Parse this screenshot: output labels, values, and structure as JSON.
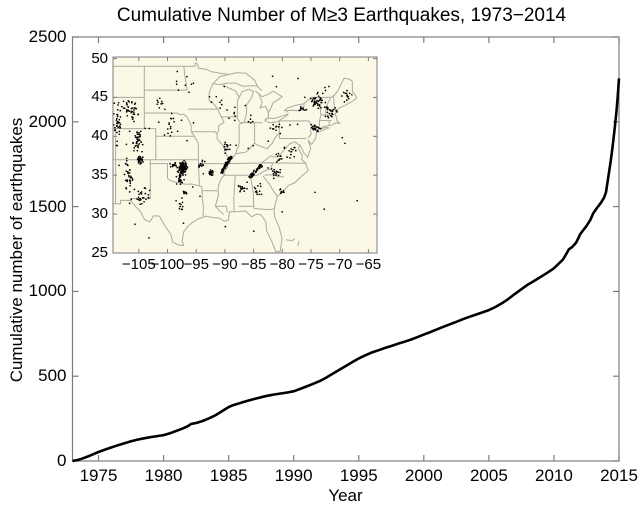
{
  "figure": {
    "title": "Cumulative Number of M≥3 Earthquakes, 1973−2014",
    "background": "#ffffff",
    "frame_color": "#7d7d7d",
    "text_color": "#000000"
  },
  "main_axes": {
    "xlabel": "Year",
    "ylabel": "Cumulative number of earthquakes",
    "xlim": [
      1973,
      2015
    ],
    "ylim": [
      0,
      2500
    ],
    "x_tick_values": [
      1975,
      1980,
      1985,
      1990,
      1995,
      2000,
      2005,
      2010,
      2015
    ],
    "x_tick_labels": [
      "1975",
      "1980",
      "1985",
      "1990",
      "1995",
      "2000",
      "2005",
      "2010",
      "2015"
    ],
    "y_tick_values": [
      0,
      500,
      1000,
      1500,
      2000,
      2500
    ],
    "y_tick_labels": [
      "0",
      "500",
      "1000",
      "1500",
      "2000",
      "2500"
    ]
  },
  "inset_axes": {
    "xlim": [
      -109.5,
      -63.5
    ],
    "ylim": [
      25,
      50.2
    ],
    "x_tick_values": [
      -105,
      -100,
      -95,
      -90,
      -85,
      -80,
      -75,
      -70,
      -65
    ],
    "x_tick_labels": [
      "−105",
      "−100",
      "−95",
      "−90",
      "−85",
      "−80",
      "−75",
      "−70",
      "−65"
    ],
    "y_tick_values": [
      25,
      30,
      35,
      40,
      45,
      50
    ],
    "y_tick_labels": [
      "25",
      "30",
      "35",
      "40",
      "45",
      "50"
    ],
    "background": "#fbf8e5",
    "boundary_color": "#a8aba4",
    "dot_color": "#000000"
  },
  "chart_data": [
    {
      "type": "line",
      "title": "Cumulative Number of M≥3 Earthquakes, 1973−2014",
      "xlabel": "Year",
      "ylabel": "Cumulative number of earthquakes",
      "xlim": [
        1973,
        2015
      ],
      "ylim": [
        0,
        2500
      ],
      "grid": false,
      "line_color": "#000000",
      "line_width": 2.6,
      "series": [
        {
          "name": "cumulative-m3-earthquakes",
          "points": [
            [
              1973.0,
              0
            ],
            [
              1973.4,
              6
            ],
            [
              1973.8,
              16
            ],
            [
              1974.2,
              27
            ],
            [
              1974.6,
              40
            ],
            [
              1975.0,
              53
            ],
            [
              1975.5,
              67
            ],
            [
              1976.0,
              80
            ],
            [
              1976.5,
              93
            ],
            [
              1977.0,
              105
            ],
            [
              1977.5,
              116
            ],
            [
              1978.0,
              126
            ],
            [
              1978.5,
              134
            ],
            [
              1979.0,
              141
            ],
            [
              1979.5,
              147
            ],
            [
              1980.0,
              153
            ],
            [
              1980.5,
              164
            ],
            [
              1981.0,
              178
            ],
            [
              1981.5,
              193
            ],
            [
              1981.8,
              203
            ],
            [
              1982.0,
              212
            ],
            [
              1982.1,
              218
            ],
            [
              1982.5,
              224
            ],
            [
              1983.0,
              236
            ],
            [
              1983.5,
              252
            ],
            [
              1984.0,
              270
            ],
            [
              1984.5,
              294
            ],
            [
              1985.0,
              318
            ],
            [
              1985.3,
              328
            ],
            [
              1985.7,
              337
            ],
            [
              1986.0,
              345
            ],
            [
              1986.5,
              356
            ],
            [
              1987.0,
              366
            ],
            [
              1987.5,
              376
            ],
            [
              1988.0,
              385
            ],
            [
              1988.5,
              392
            ],
            [
              1989.0,
              398
            ],
            [
              1989.5,
              404
            ],
            [
              1990.0,
              411
            ],
            [
              1990.5,
              425
            ],
            [
              1991.0,
              440
            ],
            [
              1991.5,
              455
            ],
            [
              1992.0,
              471
            ],
            [
              1992.5,
              492
            ],
            [
              1993.0,
              514
            ],
            [
              1993.5,
              537
            ],
            [
              1994.0,
              560
            ],
            [
              1994.5,
              583
            ],
            [
              1995.0,
              605
            ],
            [
              1995.5,
              623
            ],
            [
              1996.0,
              640
            ],
            [
              1996.5,
              653
            ],
            [
              1997.0,
              666
            ],
            [
              1997.5,
              678
            ],
            [
              1998.0,
              691
            ],
            [
              1998.5,
              703
            ],
            [
              1999.0,
              716
            ],
            [
              1999.5,
              730
            ],
            [
              2000.0,
              745
            ],
            [
              2000.5,
              760
            ],
            [
              2001.0,
              776
            ],
            [
              2001.5,
              791
            ],
            [
              2002.0,
              806
            ],
            [
              2002.5,
              821
            ],
            [
              2003.0,
              836
            ],
            [
              2003.5,
              850
            ],
            [
              2004.0,
              863
            ],
            [
              2004.5,
              876
            ],
            [
              2005.0,
              890
            ],
            [
              2005.5,
              908
            ],
            [
              2006.0,
              930
            ],
            [
              2006.5,
              956
            ],
            [
              2007.0,
              985
            ],
            [
              2007.5,
              1013
            ],
            [
              2008.0,
              1040
            ],
            [
              2008.5,
              1063
            ],
            [
              2009.0,
              1086
            ],
            [
              2009.5,
              1110
            ],
            [
              2010.0,
              1136
            ],
            [
              2010.3,
              1158
            ],
            [
              2010.7,
              1188
            ],
            [
              2011.0,
              1228
            ],
            [
              2011.15,
              1248
            ],
            [
              2011.4,
              1262
            ],
            [
              2011.7,
              1288
            ],
            [
              2011.9,
              1318
            ],
            [
              2012.0,
              1336
            ],
            [
              2012.2,
              1356
            ],
            [
              2012.5,
              1386
            ],
            [
              2012.8,
              1422
            ],
            [
              2013.0,
              1458
            ],
            [
              2013.3,
              1492
            ],
            [
              2013.6,
              1522
            ],
            [
              2013.85,
              1552
            ],
            [
              2014.0,
              1585
            ],
            [
              2014.1,
              1635
            ],
            [
              2014.2,
              1686
            ],
            [
              2014.35,
              1760
            ],
            [
              2014.5,
              1848
            ],
            [
              2014.65,
              1946
            ],
            [
              2014.8,
              2056
            ],
            [
              2014.9,
              2148
            ],
            [
              2015.0,
              2256
            ]
          ]
        }
      ]
    },
    {
      "type": "scatter",
      "name": "inset-epicenter-map",
      "xlim": [
        -109.5,
        -63.5
      ],
      "ylim": [
        25,
        50.2
      ],
      "marker_color": "#000000",
      "marker_radius": 0.85,
      "seed": 42,
      "clusters": [
        {
          "name": "wyoming-left-edge",
          "lon": -108.6,
          "lat": 41.5,
          "sx": 0.9,
          "sy": 2.6,
          "n": 38
        },
        {
          "name": "central-wyoming",
          "lon": -106.4,
          "lat": 43.4,
          "sx": 1.4,
          "sy": 1.3,
          "n": 42
        },
        {
          "name": "colorado-front-range",
          "lon": -105.2,
          "lat": 39.3,
          "sx": 0.9,
          "sy": 1.6,
          "n": 40
        },
        {
          "name": "rio-grande-rift-nm",
          "lon": -106.7,
          "lat": 34.6,
          "sx": 0.8,
          "sy": 2.0,
          "n": 34
        },
        {
          "name": "raton-basin",
          "lon": -104.8,
          "lat": 36.9,
          "sx": 0.45,
          "sy": 0.5,
          "n": 30
        },
        {
          "name": "se-new-mexico-west-texas",
          "lon": -104.3,
          "lat": 32.3,
          "sx": 1.3,
          "sy": 1.0,
          "n": 24
        },
        {
          "name": "oklahoma-main",
          "lon": -97.35,
          "lat": 35.95,
          "sx": 0.7,
          "sy": 0.75,
          "n": 135
        },
        {
          "name": "south-oklahoma",
          "lon": -97.8,
          "lat": 34.4,
          "sx": 0.6,
          "sy": 0.6,
          "n": 24
        },
        {
          "name": "nw-oklahoma",
          "lon": -98.9,
          "lat": 36.3,
          "sx": 0.55,
          "sy": 0.35,
          "n": 14
        },
        {
          "name": "dallas-fort-worth",
          "lon": -97.0,
          "lat": 32.8,
          "sx": 0.35,
          "sy": 0.3,
          "n": 10
        },
        {
          "name": "central-texas",
          "lon": -97.6,
          "lat": 31.2,
          "sx": 0.6,
          "sy": 0.7,
          "n": 10
        },
        {
          "name": "nebraska",
          "lon": -99.6,
          "lat": 41.4,
          "sx": 2.0,
          "sy": 1.4,
          "n": 16
        },
        {
          "name": "south-dakota",
          "lon": -101.2,
          "lat": 44.3,
          "sx": 1.5,
          "sy": 0.9,
          "n": 9
        },
        {
          "name": "dakotas-minnesota",
          "lon": -97.6,
          "lat": 46.8,
          "sx": 2.4,
          "sy": 1.1,
          "n": 8
        },
        {
          "name": "central-arkansas-guy",
          "lon": -92.4,
          "lat": 35.3,
          "sx": 0.4,
          "sy": 0.35,
          "n": 26
        },
        {
          "name": "nw-arkansas",
          "lon": -94.2,
          "lat": 36.4,
          "sx": 0.7,
          "sy": 0.55,
          "n": 12
        },
        {
          "name": "southern-illinois",
          "lon": -89.7,
          "lat": 38.4,
          "sx": 0.8,
          "sy": 0.7,
          "n": 16
        },
        {
          "name": "western-nc-sc",
          "lon": -81.2,
          "lat": 35.4,
          "sx": 1.1,
          "sy": 0.8,
          "n": 18
        },
        {
          "name": "charleston-sc",
          "lon": -80.1,
          "lat": 32.9,
          "sx": 0.4,
          "sy": 0.35,
          "n": 12
        },
        {
          "name": "alabama",
          "lon": -86.9,
          "lat": 33.4,
          "sx": 1.0,
          "sy": 0.9,
          "n": 16
        },
        {
          "name": "georgia",
          "lon": -84.4,
          "lat": 33.1,
          "sx": 1.1,
          "sy": 0.9,
          "n": 12
        },
        {
          "name": "virginia",
          "lon": -78.3,
          "lat": 37.9,
          "sx": 1.2,
          "sy": 0.7,
          "n": 14
        },
        {
          "name": "west-virginia-virginia",
          "lon": -80.7,
          "lat": 37.4,
          "sx": 0.8,
          "sy": 0.6,
          "n": 10
        },
        {
          "name": "new-jersey-new-york-city",
          "lon": -74.2,
          "lat": 41.0,
          "sx": 0.7,
          "sy": 0.55,
          "n": 22
        },
        {
          "name": "adirondacks-vermont",
          "lon": -74.0,
          "lat": 44.3,
          "sx": 1.2,
          "sy": 0.9,
          "n": 34
        },
        {
          "name": "new-hampshire-massachusetts",
          "lon": -71.6,
          "lat": 43.4,
          "sx": 1.1,
          "sy": 0.9,
          "n": 28
        },
        {
          "name": "maine",
          "lon": -68.9,
          "lat": 45.2,
          "sx": 0.9,
          "sy": 0.8,
          "n": 14
        },
        {
          "name": "upstate-new-york",
          "lon": -76.6,
          "lat": 43.6,
          "sx": 0.9,
          "sy": 0.5,
          "n": 10
        },
        {
          "name": "ohio",
          "lon": -81.3,
          "lat": 41.2,
          "sx": 1.0,
          "sy": 0.7,
          "n": 10
        },
        {
          "name": "michigan",
          "lon": -85.6,
          "lat": 42.2,
          "sx": 1.3,
          "sy": 0.9,
          "n": 6
        },
        {
          "name": "wisconsin-illinois",
          "lon": -88.9,
          "lat": 42.6,
          "sx": 1.2,
          "sy": 0.9,
          "n": 6
        },
        {
          "name": "minnesota-wisconsin",
          "lon": -91.8,
          "lat": 44.8,
          "sx": 1.4,
          "sy": 1.2,
          "n": 6
        }
      ],
      "line_clusters": [
        {
          "name": "new-madrid-zone",
          "from": [
            -90.6,
            35.4
          ],
          "to": [
            -88.9,
            37.4
          ],
          "jitter": 0.22,
          "n": 85
        },
        {
          "name": "eastern-tennessee-zone",
          "from": [
            -85.7,
            34.7
          ],
          "to": [
            -83.7,
            36.3
          ],
          "jitter": 0.28,
          "n": 48
        },
        {
          "name": "st-lawrence-valley",
          "from": [
            -75.2,
            44.6
          ],
          "to": [
            -70.8,
            46.9
          ],
          "jitter": 0.5,
          "n": 10
        }
      ],
      "uniform_scatter": {
        "lon_range": [
          -108.5,
          -66.0
        ],
        "lat_range": [
          26.5,
          48.5
        ],
        "n": 45
      }
    }
  ]
}
